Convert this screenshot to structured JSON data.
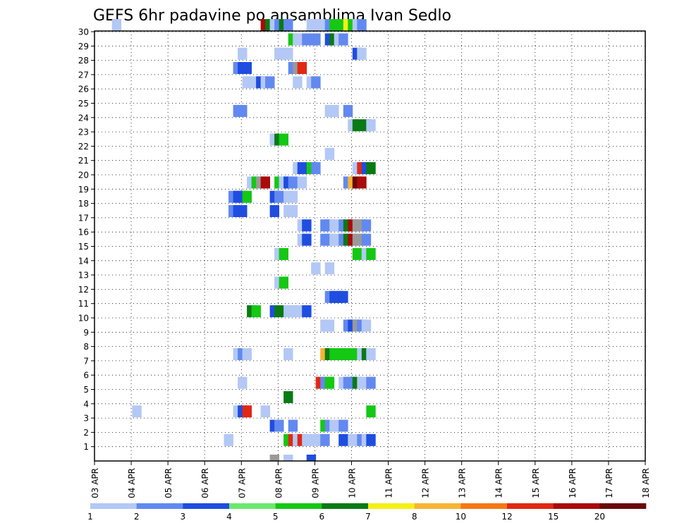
{
  "chart_data": {
    "type": "heatmap",
    "title": "GEFS 6hr padavine po ansamblima Ivan Sedlo",
    "xlabel": "",
    "ylabel": "",
    "x_ticks": [
      "03 APR",
      "04 APR",
      "05 APR",
      "06 APR",
      "07 APR",
      "08 APR",
      "09 APR",
      "10 APR",
      "11 APR",
      "12 APR",
      "13 APR",
      "14 APR",
      "15 APR",
      "16 APR",
      "17 APR",
      "18 APR"
    ],
    "y_ticks": [
      "1",
      "2",
      "3",
      "4",
      "5",
      "6",
      "7",
      "8",
      "9",
      "10",
      "11",
      "12",
      "13",
      "14",
      "15",
      "16",
      "17",
      "18",
      "19",
      "20",
      "21",
      "22",
      "23",
      "24",
      "25",
      "26",
      "27",
      "28",
      "29",
      "30"
    ],
    "xlim_steps": [
      0,
      60
    ],
    "ylim_members": [
      0,
      30
    ],
    "time_step": "6hr",
    "legend": {
      "levels": [
        "1",
        "2",
        "3",
        "4",
        "5",
        "6",
        "7",
        "8",
        "10",
        "12",
        "15",
        "20"
      ],
      "colors": [
        "#b3c8f5",
        "#6289f0",
        "#1f4de0",
        "#6de86d",
        "#14c814",
        "#0a7a14",
        "#f5f014",
        "#f5b432",
        "#f57814",
        "#e02814",
        "#aa0a0a",
        "#6a0a0a"
      ]
    },
    "cells": [
      {
        "m": 30,
        "t": [
          [
            2.4,
            1
          ],
          [
            18.6,
            11
          ],
          [
            19.1,
            6
          ],
          [
            19.6,
            1
          ],
          [
            20.1,
            2
          ],
          [
            20.6,
            6
          ],
          [
            21.1,
            2
          ],
          [
            23.6,
            1
          ],
          [
            24.1,
            1
          ],
          [
            25.1,
            1
          ],
          [
            25.6,
            2
          ],
          [
            26.1,
            5
          ],
          [
            27.1,
            5
          ],
          [
            27.6,
            7
          ],
          [
            28.1,
            5
          ],
          [
            28.6,
            1
          ],
          [
            29.1,
            2
          ]
        ]
      },
      {
        "m": 29,
        "t": [
          [
            21.6,
            5
          ],
          [
            22.1,
            1
          ],
          [
            23.1,
            2
          ],
          [
            24.1,
            2
          ],
          [
            25.6,
            3
          ],
          [
            26.1,
            6
          ],
          [
            26.6,
            1
          ],
          [
            27.1,
            2
          ]
        ]
      },
      {
        "m": 28,
        "t": [
          [
            16.1,
            1
          ],
          [
            20.1,
            1
          ],
          [
            20.6,
            1
          ],
          [
            21.1,
            1
          ],
          [
            28.6,
            3
          ],
          [
            29.1,
            1
          ]
        ]
      },
      {
        "m": 27,
        "t": [
          [
            15.6,
            2
          ],
          [
            16.1,
            3
          ],
          [
            16.6,
            3
          ],
          [
            21.6,
            2
          ],
          [
            22.1,
            13
          ],
          [
            22.6,
            10
          ]
        ]
      },
      {
        "m": 26,
        "t": [
          [
            16.6,
            1
          ],
          [
            17.6,
            1
          ],
          [
            18.1,
            3
          ],
          [
            18.6,
            1
          ],
          [
            19.1,
            2
          ],
          [
            22.1,
            1
          ],
          [
            23.6,
            1
          ],
          [
            24.1,
            2
          ]
        ]
      },
      {
        "m": 24,
        "t": [
          [
            15.6,
            2
          ],
          [
            16.1,
            2
          ],
          [
            25.6,
            1
          ],
          [
            26.1,
            1
          ],
          [
            27.6,
            2
          ]
        ]
      },
      {
        "m": 23,
        "t": [
          [
            28.1,
            1
          ],
          [
            28.6,
            6
          ],
          [
            29.6,
            6
          ],
          [
            30.1,
            1
          ]
        ]
      },
      {
        "m": 22,
        "t": [
          [
            19.6,
            1
          ],
          [
            20.1,
            6
          ],
          [
            20.6,
            5
          ]
        ]
      },
      {
        "m": 21,
        "t": [
          [
            25.6,
            1
          ]
        ]
      },
      {
        "m": 20,
        "t": [
          [
            22.1,
            1
          ],
          [
            22.6,
            3
          ],
          [
            23.6,
            5
          ],
          [
            24.1,
            2
          ],
          [
            28.6,
            1
          ],
          [
            29.1,
            10
          ],
          [
            29.6,
            3
          ],
          [
            30.1,
            6
          ]
        ]
      },
      {
        "m": 19,
        "t": [
          [
            17.1,
            1
          ],
          [
            17.6,
            5
          ],
          [
            18.1,
            13
          ],
          [
            18.6,
            11
          ],
          [
            20.1,
            5
          ],
          [
            20.6,
            1
          ],
          [
            21.1,
            3
          ],
          [
            21.6,
            2
          ],
          [
            22.6,
            1
          ],
          [
            27.6,
            2
          ],
          [
            28.1,
            8
          ],
          [
            28.6,
            12
          ],
          [
            29.1,
            11
          ]
        ]
      },
      {
        "m": 18,
        "t": [
          [
            15.1,
            2
          ],
          [
            15.6,
            3
          ],
          [
            16.1,
            3
          ],
          [
            16.6,
            5
          ],
          [
            19.6,
            3
          ],
          [
            20.1,
            2
          ],
          [
            21.1,
            1
          ],
          [
            21.6,
            1
          ]
        ]
      },
      {
        "m": 17,
        "t": [
          [
            15.1,
            2
          ],
          [
            15.6,
            3
          ],
          [
            16.1,
            3
          ],
          [
            19.6,
            3
          ],
          [
            21.1,
            1
          ],
          [
            21.6,
            1
          ]
        ]
      },
      {
        "m": 16,
        "t": [
          [
            22.6,
            1
          ],
          [
            23.1,
            3
          ],
          [
            25.1,
            2
          ],
          [
            25.6,
            2
          ],
          [
            26.1,
            1
          ],
          [
            26.6,
            1
          ],
          [
            27.1,
            2
          ],
          [
            27.6,
            6
          ],
          [
            28.1,
            11
          ],
          [
            28.6,
            13
          ],
          [
            29.1,
            14
          ],
          [
            29.6,
            2
          ]
        ]
      },
      {
        "m": 15,
        "t": [
          [
            22.6,
            1
          ],
          [
            23.1,
            3
          ],
          [
            25.1,
            2
          ],
          [
            25.6,
            2
          ],
          [
            26.1,
            1
          ],
          [
            26.6,
            1
          ],
          [
            27.1,
            2
          ],
          [
            27.6,
            6
          ],
          [
            28.1,
            11
          ],
          [
            28.6,
            13
          ],
          [
            29.1,
            14
          ],
          [
            29.6,
            2
          ]
        ]
      },
      {
        "m": 14,
        "t": [
          [
            20.1,
            1
          ],
          [
            20.6,
            5
          ],
          [
            28.6,
            5
          ],
          [
            29.6,
            1
          ],
          [
            30.1,
            5
          ]
        ]
      },
      {
        "m": 13,
        "t": [
          [
            24.1,
            1
          ],
          [
            25.6,
            1
          ]
        ]
      },
      {
        "m": 12,
        "t": [
          [
            20.1,
            1
          ],
          [
            20.6,
            5
          ]
        ]
      },
      {
        "m": 11,
        "t": [
          [
            25.6,
            2
          ],
          [
            26.1,
            3
          ],
          [
            26.6,
            3
          ],
          [
            27.1,
            3
          ]
        ]
      },
      {
        "m": 10,
        "t": [
          [
            17.1,
            6
          ],
          [
            17.6,
            5
          ],
          [
            19.6,
            3
          ],
          [
            20.1,
            6
          ],
          [
            21.1,
            1
          ],
          [
            21.6,
            1
          ],
          [
            22.1,
            1
          ],
          [
            23.1,
            3
          ]
        ]
      },
      {
        "m": 9,
        "t": [
          [
            25.1,
            1
          ],
          [
            25.6,
            1
          ],
          [
            27.6,
            2
          ],
          [
            28.1,
            3
          ],
          [
            28.6,
            14
          ],
          [
            29.1,
            2
          ],
          [
            29.6,
            1
          ]
        ]
      },
      {
        "m": 7,
        "t": [
          [
            15.6,
            1
          ],
          [
            16.1,
            2
          ],
          [
            16.6,
            1
          ],
          [
            21.1,
            1
          ],
          [
            25.1,
            8
          ],
          [
            25.6,
            6
          ],
          [
            26.1,
            5
          ],
          [
            26.6,
            5
          ],
          [
            27.1,
            5
          ],
          [
            27.6,
            5
          ],
          [
            28.1,
            5
          ],
          [
            29.1,
            1
          ],
          [
            29.6,
            6
          ],
          [
            30.1,
            1
          ]
        ]
      },
      {
        "m": 5,
        "t": [
          [
            16.1,
            1
          ],
          [
            24.6,
            10
          ],
          [
            25.1,
            2
          ],
          [
            25.6,
            5
          ],
          [
            27.1,
            1
          ],
          [
            27.6,
            2
          ],
          [
            28.1,
            2
          ],
          [
            28.6,
            6
          ],
          [
            29.1,
            1
          ],
          [
            30.1,
            2
          ]
        ]
      },
      {
        "m": 4,
        "t": [
          [
            21.1,
            6
          ]
        ]
      },
      {
        "m": 3,
        "t": [
          [
            4.6,
            1
          ],
          [
            15.6,
            1
          ],
          [
            16.1,
            3
          ],
          [
            16.6,
            10
          ],
          [
            18.6,
            1
          ],
          [
            30.1,
            5
          ]
        ]
      },
      {
        "m": 2,
        "t": [
          [
            19.6,
            3
          ],
          [
            20.1,
            2
          ],
          [
            21.6,
            2
          ],
          [
            25.1,
            5
          ],
          [
            25.6,
            2
          ],
          [
            26.1,
            1
          ],
          [
            26.6,
            1
          ],
          [
            27.1,
            2
          ]
        ]
      },
      {
        "m": 1,
        "t": [
          [
            14.6,
            1
          ],
          [
            21.1,
            5
          ],
          [
            21.6,
            10
          ],
          [
            22.1,
            1
          ],
          [
            22.6,
            10
          ],
          [
            23.1,
            1
          ],
          [
            23.6,
            1
          ],
          [
            24.1,
            1
          ],
          [
            24.6,
            1
          ],
          [
            25.1,
            2
          ],
          [
            27.1,
            3
          ],
          [
            28.1,
            1
          ],
          [
            29.1,
            2
          ],
          [
            29.6,
            1
          ],
          [
            30.1,
            3
          ]
        ]
      },
      {
        "m": 0,
        "t": [
          [
            19.6,
            14
          ],
          [
            21.1,
            1
          ],
          [
            23.6,
            3
          ]
        ]
      }
    ]
  }
}
